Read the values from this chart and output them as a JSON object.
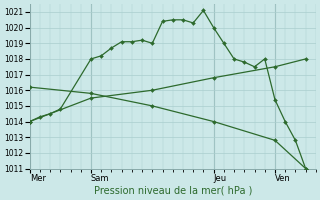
{
  "bg_color": "#cce8e8",
  "grid_color": "#aacece",
  "line_color": "#2d6a2d",
  "ylim": [
    1011,
    1021.5
  ],
  "yticks": [
    1011,
    1012,
    1013,
    1014,
    1015,
    1016,
    1017,
    1018,
    1019,
    1020,
    1021
  ],
  "xlabel": "Pression niveau de la mer( hPa )",
  "day_labels": [
    "Mer",
    "Sam",
    "Jeu",
    "Ven"
  ],
  "day_positions": [
    0,
    6,
    18,
    24
  ],
  "xlim": [
    0,
    28
  ],
  "series1": {
    "x": [
      0,
      1,
      2,
      3,
      6,
      7,
      8,
      9,
      10,
      11,
      12,
      13,
      14,
      15,
      16,
      17,
      18,
      19,
      20,
      21,
      22,
      23,
      24,
      25,
      26,
      27
    ],
    "y": [
      1014.0,
      1014.3,
      1014.5,
      1014.8,
      1018.0,
      1018.2,
      1018.7,
      1019.1,
      1019.1,
      1019.2,
      1019.0,
      1020.4,
      1020.5,
      1020.5,
      1020.3,
      1021.1,
      1020.0,
      1019.0,
      1018.0,
      1017.8,
      1017.5,
      1018.0,
      1015.4,
      1014.0,
      1012.8,
      1011.0
    ]
  },
  "series2": {
    "x": [
      0,
      6,
      12,
      18,
      24,
      27
    ],
    "y": [
      1014.0,
      1015.5,
      1016.0,
      1016.8,
      1017.5,
      1018.0
    ]
  },
  "series3": {
    "x": [
      0,
      6,
      12,
      18,
      24,
      27
    ],
    "y": [
      1016.2,
      1015.8,
      1015.0,
      1014.0,
      1012.8,
      1011.0
    ]
  }
}
